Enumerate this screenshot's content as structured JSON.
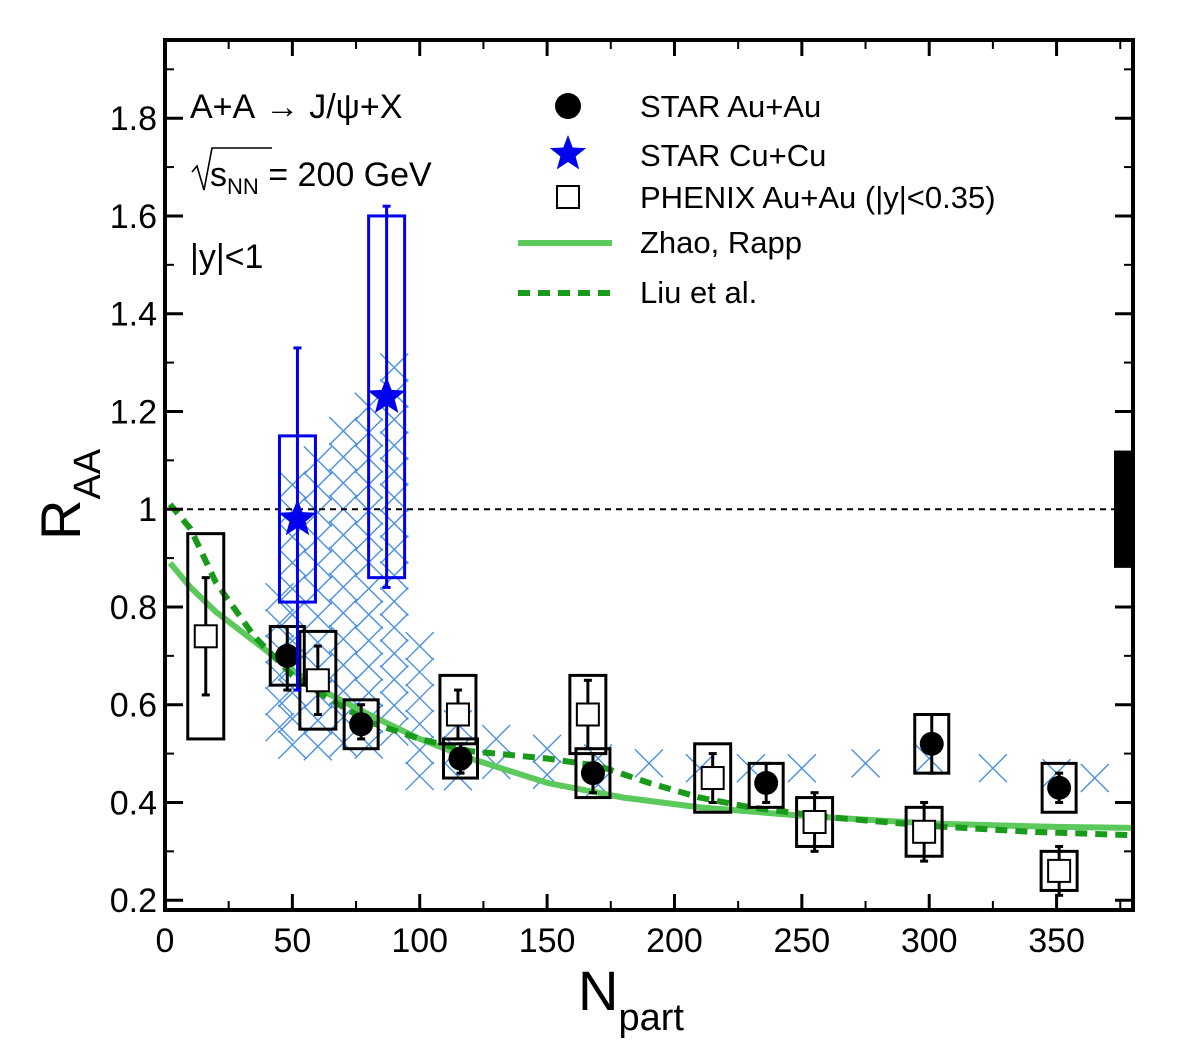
{
  "chart_data": {
    "type": "scatter",
    "xlabel_main": "N",
    "xlabel_sub": "part",
    "ylabel_main": "R",
    "ylabel_sub": "AA",
    "xlim": [
      0,
      380
    ],
    "ylim": [
      0.18,
      1.96
    ],
    "xticks": [
      "0",
      "50",
      "100",
      "150",
      "200",
      "250",
      "300",
      "350"
    ],
    "xtick_values": [
      0,
      50,
      100,
      150,
      200,
      250,
      300,
      350
    ],
    "yticks": [
      "0.2",
      "0.4",
      "0.6",
      "0.8",
      "1",
      "1.2",
      "1.4",
      "1.6",
      "1.8"
    ],
    "ytick_values": [
      0.2,
      0.4,
      0.6,
      0.8,
      1.0,
      1.2,
      1.4,
      1.6,
      1.8
    ],
    "reference_line": 1.0,
    "annotations": {
      "reaction_a": "A+A",
      "arrow": "→",
      "reaction_b": "J/ψ+X",
      "energy_s": "s",
      "energy_sub": "NN",
      "energy_rest": " = 200 GeV",
      "rapidity": "|y|<1"
    },
    "legend": [
      {
        "label": "STAR Au+Au"
      },
      {
        "label": "STAR Cu+Cu"
      },
      {
        "label": "PHENIX Au+Au (|y|<0.35)"
      },
      {
        "label": "Zhao, Rapp"
      },
      {
        "label": "Liu et al."
      }
    ],
    "colors": {
      "star_auau": "#000000",
      "star_cucu": "#0000ee",
      "phenix": "#000000",
      "zhao_rapp": "#5cc95c",
      "liu": "#1a9a1a",
      "hatch": "#4a90e2"
    },
    "series": [
      {
        "name": "STAR Au+Au",
        "points": [
          {
            "x": 48,
            "y": 0.7,
            "stat": [
              0.63,
              0.76
            ],
            "sys": [
              0.64,
              0.76
            ]
          },
          {
            "x": 77,
            "y": 0.56,
            "stat": [
              0.53,
              0.6
            ],
            "sys": [
              0.51,
              0.61
            ]
          },
          {
            "x": 116,
            "y": 0.49,
            "stat": [
              0.46,
              0.52
            ],
            "sys": [
              0.45,
              0.53
            ]
          },
          {
            "x": 168,
            "y": 0.46,
            "stat": [
              0.42,
              0.5
            ],
            "sys": [
              0.41,
              0.51
            ]
          },
          {
            "x": 236,
            "y": 0.44,
            "stat": [
              0.4,
              0.48
            ],
            "sys": [
              0.39,
              0.48
            ]
          },
          {
            "x": 301,
            "y": 0.52,
            "stat": [
              0.46,
              0.58
            ],
            "sys": [
              0.46,
              0.58
            ]
          },
          {
            "x": 351,
            "y": 0.43,
            "stat": [
              0.4,
              0.46
            ],
            "sys": [
              0.38,
              0.48
            ]
          }
        ]
      },
      {
        "name": "STAR Cu+Cu",
        "points": [
          {
            "x": 52,
            "y": 0.98,
            "stat": [
              0.63,
              1.33
            ],
            "sys": [
              0.81,
              1.15
            ]
          },
          {
            "x": 87,
            "y": 1.23,
            "stat": [
              0.84,
              1.62
            ],
            "sys": [
              0.86,
              1.6
            ]
          }
        ]
      },
      {
        "name": "PHENIX Au+Au (|y|<0.35)",
        "points": [
          {
            "x": 16,
            "y": 0.74,
            "stat": [
              0.62,
              0.86
            ],
            "sys": [
              0.53,
              0.95
            ]
          },
          {
            "x": 60,
            "y": 0.65,
            "stat": [
              0.58,
              0.72
            ],
            "sys": [
              0.55,
              0.75
            ]
          },
          {
            "x": 115,
            "y": 0.58,
            "stat": [
              0.53,
              0.63
            ],
            "sys": [
              0.52,
              0.66
            ]
          },
          {
            "x": 166,
            "y": 0.58,
            "stat": [
              0.51,
              0.65
            ],
            "sys": [
              0.5,
              0.66
            ]
          },
          {
            "x": 215,
            "y": 0.45,
            "stat": [
              0.4,
              0.5
            ],
            "sys": [
              0.38,
              0.52
            ]
          },
          {
            "x": 255,
            "y": 0.36,
            "stat": [
              0.3,
              0.42
            ],
            "sys": [
              0.31,
              0.41
            ]
          },
          {
            "x": 298,
            "y": 0.34,
            "stat": [
              0.28,
              0.4
            ],
            "sys": [
              0.29,
              0.39
            ]
          },
          {
            "x": 351,
            "y": 0.26,
            "stat": [
              0.21,
              0.31
            ],
            "sys": [
              0.22,
              0.3
            ]
          }
        ]
      },
      {
        "name": "Zhao, Rapp",
        "line": [
          [
            2,
            0.89
          ],
          [
            10,
            0.84
          ],
          [
            20,
            0.79
          ],
          [
            35,
            0.73
          ],
          [
            50,
            0.67
          ],
          [
            65,
            0.62
          ],
          [
            80,
            0.58
          ],
          [
            100,
            0.53
          ],
          [
            120,
            0.49
          ],
          [
            150,
            0.44
          ],
          [
            180,
            0.41
          ],
          [
            210,
            0.39
          ],
          [
            250,
            0.373
          ],
          [
            300,
            0.357
          ],
          [
            350,
            0.35
          ],
          [
            380,
            0.348
          ]
        ]
      },
      {
        "name": "Liu et al.",
        "line": [
          [
            2,
            1.01
          ],
          [
            10,
            0.96
          ],
          [
            20,
            0.85
          ],
          [
            35,
            0.74
          ],
          [
            50,
            0.66
          ],
          [
            65,
            0.61
          ],
          [
            80,
            0.565
          ],
          [
            100,
            0.53
          ],
          [
            120,
            0.505
          ],
          [
            150,
            0.49
          ],
          [
            170,
            0.475
          ],
          [
            190,
            0.44
          ],
          [
            210,
            0.41
          ],
          [
            230,
            0.39
          ],
          [
            260,
            0.37
          ],
          [
            300,
            0.352
          ],
          [
            340,
            0.34
          ],
          [
            380,
            0.333
          ]
        ]
      },
      {
        "name": "hatched band",
        "band_x": [
          45,
          50,
          60,
          70,
          80,
          90,
          100,
          115,
          130,
          150,
          170,
          190,
          210,
          230,
          250,
          275,
          300,
          325,
          350,
          365
        ],
        "band_hi": [
          0.82,
          1.05,
          1.1,
          1.16,
          1.21,
          1.29,
          0.72,
          0.56,
          0.53,
          0.51,
          0.49,
          0.48,
          0.47,
          0.47,
          0.47,
          0.48,
          0.49,
          0.47,
          0.46,
          0.45
        ],
        "band_lo": [
          0.55,
          0.51,
          0.5,
          0.49,
          0.47,
          0.5,
          0.45,
          0.44,
          0.44,
          0.44,
          0.43,
          0.43,
          0.43,
          0.43,
          0.44,
          0.45,
          0.46,
          0.45,
          0.44,
          0.43
        ]
      }
    ],
    "global_uncertainty": [
      0.88,
      1.12
    ]
  }
}
